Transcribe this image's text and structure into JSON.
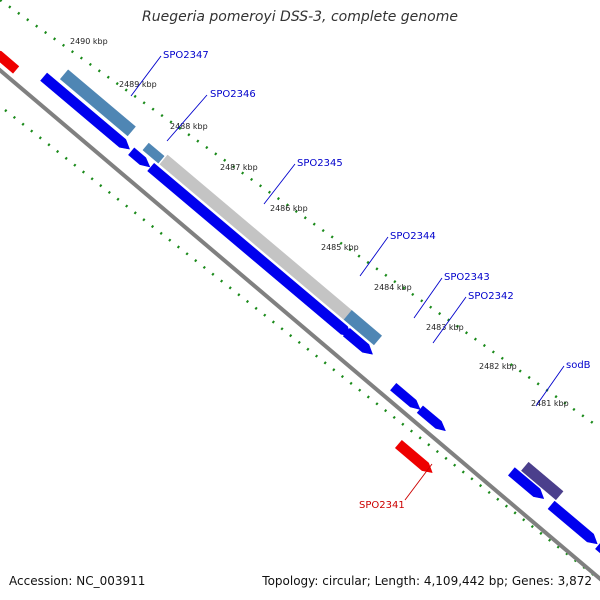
{
  "title": "Ruegeria pomeroyi DSS-3, complete genome",
  "footer": {
    "accession_label": "Accession:",
    "accession": "NC_003911",
    "topology_label": "Topology:",
    "topology": "circular",
    "length_label": "Length:",
    "length": "4,109,442 bp",
    "genes_label": "Genes:",
    "genes": "3,872"
  },
  "scale": {
    "unit": "kbp",
    "ticks": [
      2490,
      2489,
      2488,
      2487,
      2486,
      2485,
      2484,
      2483,
      2482,
      2481
    ]
  },
  "genes": [
    {
      "label": "SPO2347",
      "color": "#0000cc"
    },
    {
      "label": "SPO2346",
      "color": "#0000cc"
    },
    {
      "label": "SPO2345",
      "color": "#0000cc"
    },
    {
      "label": "SPO2344",
      "color": "#0000cc"
    },
    {
      "label": "SPO2343",
      "color": "#0000cc"
    },
    {
      "label": "SPO2342",
      "color": "#0000cc"
    },
    {
      "label": "sodB",
      "color": "#0000cc"
    },
    {
      "label": "SPO2341",
      "color": "#cc0000"
    }
  ],
  "colors": {
    "backbone": "#808080",
    "tick_dots": "#1a8a1a",
    "forward_cds": "#0000ee",
    "reverse_cds": "#ee0000",
    "feature_light_blue": "#4f86b4",
    "feature_gray": "#c4c4c4",
    "feature_purple": "#4b3f8c"
  }
}
